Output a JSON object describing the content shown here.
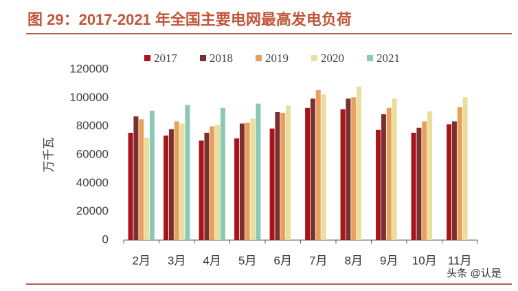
{
  "chart_data": {
    "type": "bar",
    "title": "图 29：2017-2021 年全国主要电网最高发电负荷",
    "y_label": "万千瓦",
    "watermark": "头条 @认是",
    "categories": [
      "2月",
      "3月",
      "4月",
      "5月",
      "6月",
      "7月",
      "8月",
      "9月",
      "10月",
      "11月"
    ],
    "series": [
      {
        "name": "2017",
        "color": "#a8141a",
        "values": [
          75500,
          73500,
          70000,
          71500,
          78500,
          93000,
          92000,
          77500,
          75500,
          81500
        ]
      },
      {
        "name": "2018",
        "color": "#7b3030",
        "values": [
          87000,
          78000,
          75500,
          82000,
          90000,
          99500,
          99500,
          88500,
          79000,
          83500
        ]
      },
      {
        "name": "2019",
        "color": "#e8a05c",
        "values": [
          85000,
          83500,
          80000,
          82500,
          89500,
          105500,
          100500,
          93000,
          83500,
          93500
        ]
      },
      {
        "name": "2020",
        "color": "#e9de9c",
        "values": [
          72000,
          82000,
          81000,
          85500,
          94500,
          102500,
          108000,
          99500,
          90500,
          100500
        ]
      },
      {
        "name": "2021",
        "color": "#8cc8b6",
        "values": [
          91000,
          95000,
          93000,
          96000,
          null,
          null,
          null,
          null,
          null,
          null
        ]
      }
    ],
    "ylim": [
      0,
      120000
    ],
    "yticks": [
      0,
      20000,
      40000,
      60000,
      80000,
      100000,
      120000
    ],
    "grid": false
  }
}
